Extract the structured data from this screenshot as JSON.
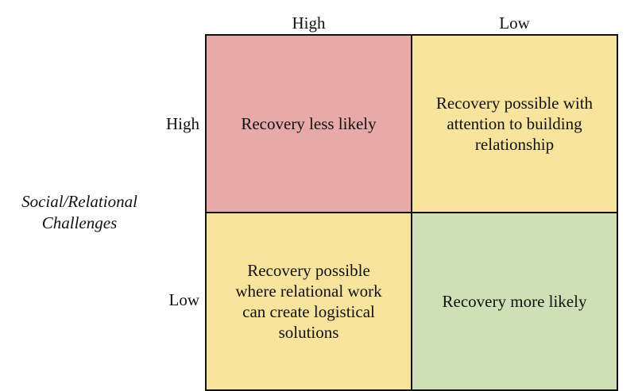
{
  "columns": {
    "labels": [
      "High",
      "Low"
    ]
  },
  "rows": {
    "title_line1": "Social/Relational",
    "title_line2": "Challenges",
    "labels": [
      "High",
      "Low"
    ]
  },
  "cells": [
    {
      "text": "Recovery less likely",
      "color": "#e8a9a9"
    },
    {
      "text": "Recovery possible with attention to building relationship",
      "color": "#f8e49c"
    },
    {
      "text": "Recovery possible where relational work can create logistical solutions",
      "color": "#f8e49c"
    },
    {
      "text": "Recovery more likely",
      "color": "#d0e0b6"
    }
  ]
}
